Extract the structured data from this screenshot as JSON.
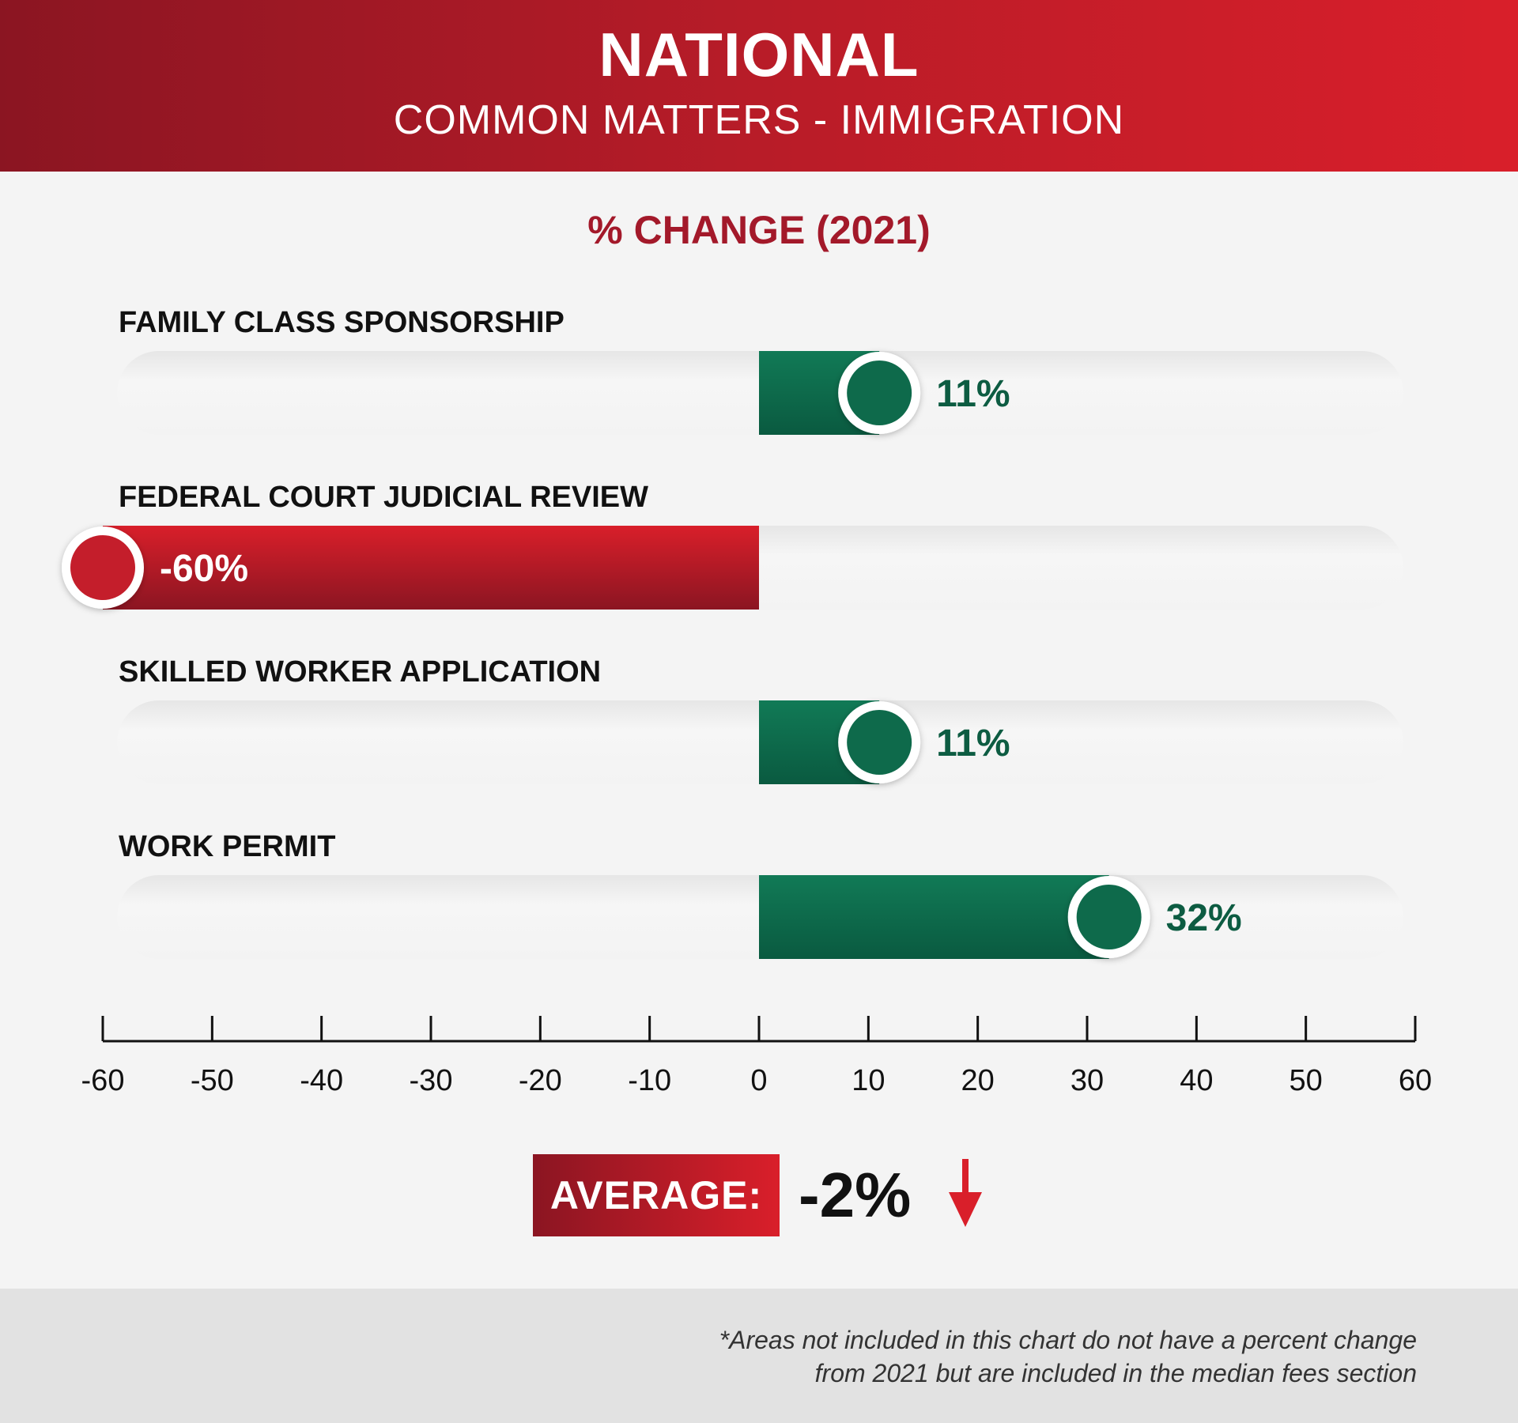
{
  "header": {
    "title": "NATIONAL",
    "subtitle": "COMMON MATTERS - IMMIGRATION"
  },
  "section_title": "% CHANGE (2021)",
  "colors": {
    "positive": "#0d6b4c",
    "negative": "#c41e2b",
    "header_start": "#8b1522",
    "header_end": "#d91f2a"
  },
  "chart_data": {
    "type": "bar",
    "orientation": "horizontal",
    "title": "% CHANGE (2021)",
    "categories": [
      "FAMILY CLASS SPONSORSHIP",
      "FEDERAL COURT JUDICIAL REVIEW",
      "SKILLED WORKER APPLICATION",
      "WORK PERMIT"
    ],
    "values": [
      11,
      -60,
      11,
      32
    ],
    "value_labels": [
      "11%",
      "-60%",
      "11%",
      "32%"
    ],
    "xlim": [
      -60,
      60
    ],
    "xticks": [
      -60,
      -50,
      -40,
      -30,
      -20,
      -10,
      0,
      10,
      20,
      30,
      40,
      50,
      60
    ],
    "grid": false
  },
  "average": {
    "label": "AVERAGE:",
    "value": "-2%",
    "direction": "down",
    "icon": "down-arrow-icon"
  },
  "footnote": {
    "line1": "*Areas not included in this chart do not have a percent change",
    "line2": "from 2021 but are included in the median fees section"
  }
}
